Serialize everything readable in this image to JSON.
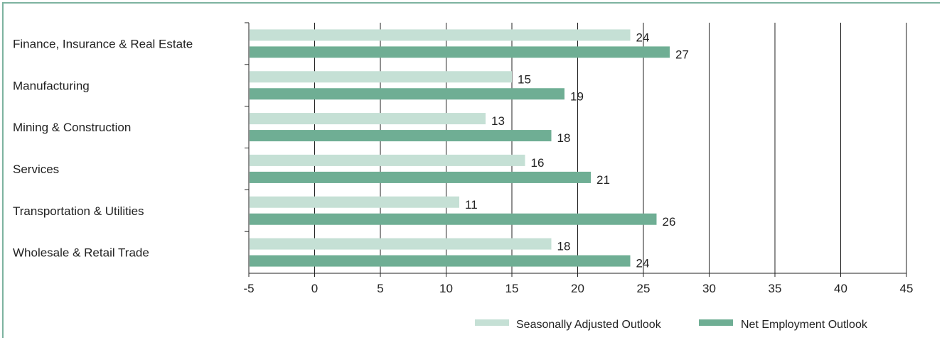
{
  "chart_data": {
    "type": "bar",
    "orientation": "horizontal",
    "categories": [
      "Finance, Insurance & Real Estate",
      "Manufacturing",
      "Mining & Construction",
      "Services",
      "Transportation & Utilities",
      "Wholesale & Retail Trade"
    ],
    "series": [
      {
        "name": "Seasonally Adjusted Outlook",
        "values": [
          24,
          15,
          13,
          16,
          11,
          18
        ],
        "color": "#c5e0d5"
      },
      {
        "name": "Net Employment Outlook",
        "values": [
          27,
          19,
          18,
          21,
          26,
          24
        ],
        "color": "#6fae94"
      }
    ],
    "xlim": [
      -5,
      45
    ],
    "xticks": [
      "-5",
      "0",
      "5",
      "10",
      "15",
      "20",
      "25",
      "30",
      "35",
      "40",
      "45"
    ],
    "grid": "vertical",
    "legend_position": "bottom-right",
    "title": "",
    "xlabel": "",
    "ylabel": ""
  }
}
